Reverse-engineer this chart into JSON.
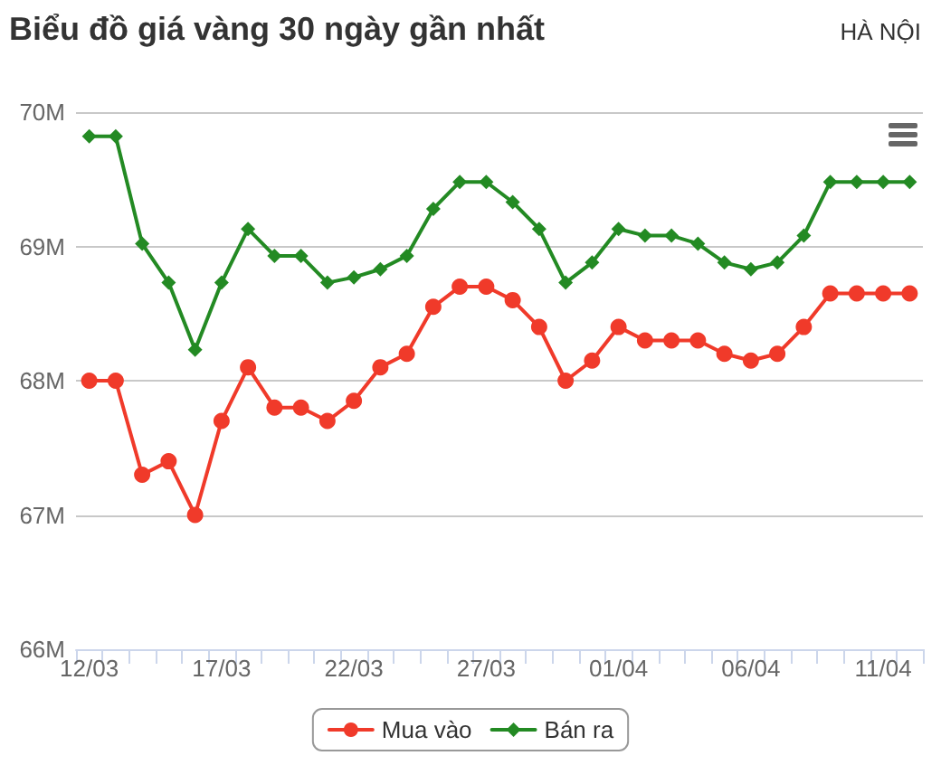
{
  "chart_data": {
    "type": "line",
    "title": "Biểu đồ giá vàng 30 ngày gần nhất",
    "subtitle": "HÀ NỘI",
    "categories": [
      "12/03",
      null,
      null,
      null,
      null,
      "17/03",
      null,
      null,
      null,
      null,
      "22/03",
      null,
      null,
      null,
      null,
      "27/03",
      null,
      null,
      null,
      null,
      "01/04",
      null,
      null,
      null,
      null,
      "06/04",
      null,
      null,
      null,
      null,
      "11/04",
      null
    ],
    "series": [
      {
        "name": "Mua vào",
        "color": "#f03a2a",
        "marker": "circle",
        "values": [
          68000000,
          68000000,
          67300000,
          67400000,
          67000000,
          67700000,
          68100000,
          67800000,
          67800000,
          67700000,
          67850000,
          68100000,
          68200000,
          68550000,
          68700000,
          68700000,
          68600000,
          68400000,
          68000000,
          68150000,
          68400000,
          68300000,
          68300000,
          68300000,
          68200000,
          68150000,
          68200000,
          68400000,
          68650000,
          68650000,
          68650000,
          68650000
        ]
      },
      {
        "name": "Bán ra",
        "color": "#238a23",
        "marker": "diamond",
        "values": [
          69820000,
          69820000,
          69020000,
          68730000,
          68230000,
          68730000,
          69130000,
          68930000,
          68930000,
          68730000,
          68770000,
          68830000,
          68930000,
          69280000,
          69480000,
          69480000,
          69330000,
          69130000,
          68730000,
          68880000,
          69130000,
          69080000,
          69080000,
          69020000,
          68880000,
          68830000,
          68880000,
          69080000,
          69480000,
          69480000,
          69480000,
          69480000
        ]
      }
    ],
    "ylim": [
      66000000,
      70000000
    ],
    "yticks": [
      {
        "value": 66000000,
        "label": "66M"
      },
      {
        "value": 67000000,
        "label": "67M"
      },
      {
        "value": 68000000,
        "label": "68M"
      },
      {
        "value": 69000000,
        "label": "69M"
      },
      {
        "value": 70000000,
        "label": "70M"
      }
    ],
    "grid": "y",
    "legend": "bottom",
    "line_style": "solid"
  }
}
